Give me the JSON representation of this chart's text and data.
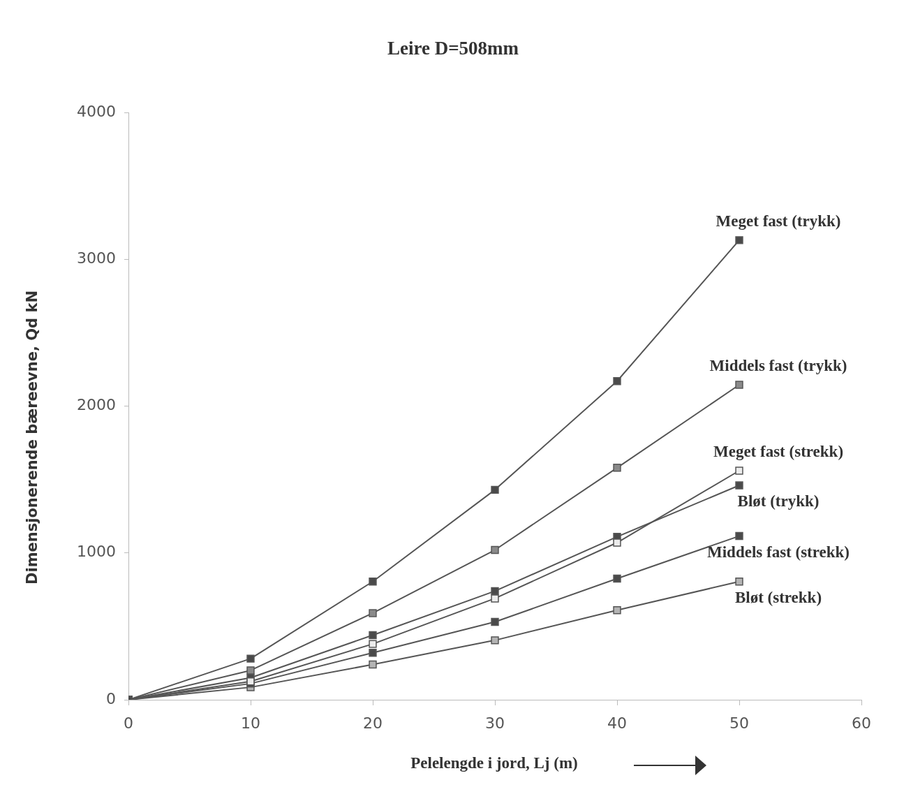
{
  "chart_data": {
    "type": "line",
    "title": "Leire D=508mm",
    "xlabel": "Pelelengde i jord, Lj (m)",
    "ylabel": "Dimensjonerende bæreevne, Qd kN",
    "x": [
      0,
      10,
      20,
      30,
      40,
      50
    ],
    "xlim": [
      0,
      60
    ],
    "xticks": [
      0,
      10,
      20,
      30,
      40,
      50,
      60
    ],
    "ylim": [
      0,
      4000
    ],
    "yticks": [
      0,
      1000,
      2000,
      3000,
      4000
    ],
    "grid": false,
    "legend": false,
    "marker": "square",
    "line_style": "solid",
    "series": [
      {
        "name": "Meget fast (trykk)",
        "color": "#4a4a4a",
        "values": [
          0,
          280,
          805,
          1430,
          2170,
          3130
        ]
      },
      {
        "name": "Middels fast (trykk)",
        "color": "#8a8a8a",
        "values": [
          0,
          200,
          590,
          1020,
          1580,
          2145
        ]
      },
      {
        "name": "Meget fast (strekk)",
        "color": "#ececec",
        "values": [
          0,
          125,
          380,
          690,
          1070,
          1560
        ]
      },
      {
        "name": "Bløt (trykk)",
        "color": "#4a4a4a",
        "values": [
          0,
          150,
          440,
          740,
          1110,
          1460
        ]
      },
      {
        "name": "Middels fast (strekk)",
        "color": "#4a4a4a",
        "values": [
          0,
          110,
          320,
          530,
          825,
          1115
        ]
      },
      {
        "name": "Bløt (strekk)",
        "color": "#b4b4b4",
        "values": [
          0,
          85,
          240,
          405,
          610,
          805
        ]
      }
    ]
  }
}
